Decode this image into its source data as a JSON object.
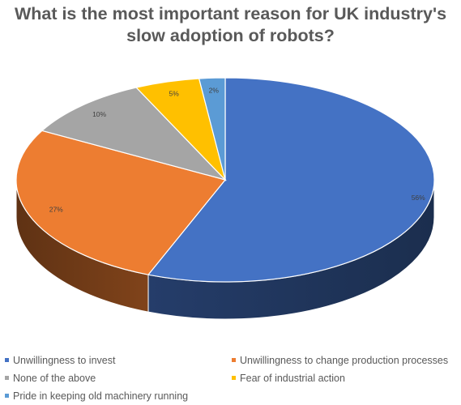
{
  "chart_data": {
    "type": "pie",
    "title": "What is the most important reason for UK industry's slow adoption of robots?",
    "title_lines": [
      "What is the most important reason for UK industry's",
      "slow adoption of robots?"
    ],
    "three_d": true,
    "legend_position": "bottom",
    "categories": [
      "Unwillingness to invest",
      "Unwillingness to change production processes",
      "None of the above",
      "Fear of industrial action",
      "Pride in keeping old machinery running"
    ],
    "values": [
      56,
      27,
      10,
      5,
      2
    ],
    "data_labels": [
      "56%",
      "27%",
      "10%",
      "5%",
      "2%"
    ],
    "colors": [
      "#4472C4",
      "#ED7D31",
      "#A5A5A5",
      "#FFC000",
      "#5B9BD5"
    ]
  }
}
